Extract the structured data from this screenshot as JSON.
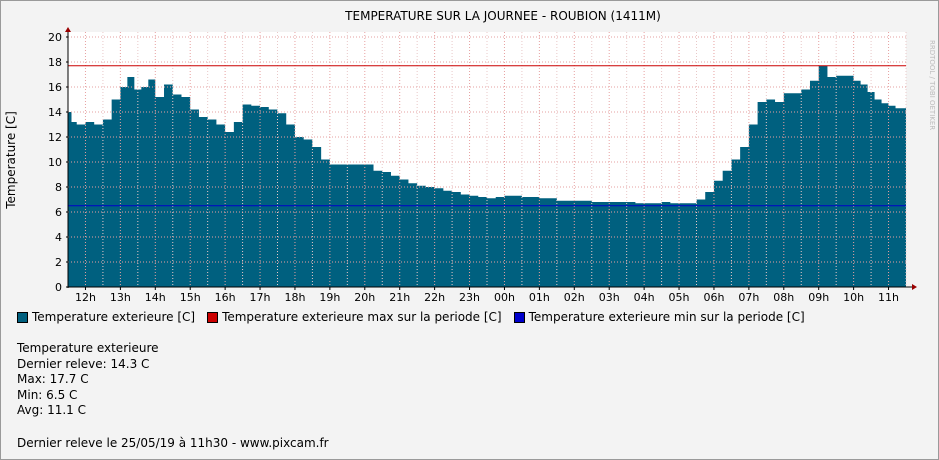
{
  "chart_data": {
    "type": "area",
    "title": "TEMPERATURE SUR LA JOURNEE - ROUBION (1411M)",
    "ylabel": "Temperature [C]",
    "xlabel": "",
    "ylim": [
      0,
      20
    ],
    "yticks": [
      0,
      2,
      4,
      6,
      8,
      10,
      12,
      14,
      16,
      18,
      20
    ],
    "x_tick_labels": [
      "12h",
      "13h",
      "14h",
      "15h",
      "16h",
      "17h",
      "18h",
      "19h",
      "20h",
      "21h",
      "22h",
      "23h",
      "00h",
      "01h",
      "02h",
      "03h",
      "04h",
      "05h",
      "06h",
      "07h",
      "08h",
      "09h",
      "10h",
      "11h"
    ],
    "x_start_hour": 11.5,
    "x_end_hour": 35.5,
    "grid": true,
    "series": [
      {
        "name": "Temperature exterieure [C]",
        "color": "#00607f",
        "x_hours": [
          11.5,
          11.6,
          11.75,
          12.0,
          12.25,
          12.5,
          12.75,
          13.0,
          13.2,
          13.4,
          13.6,
          13.8,
          14.0,
          14.25,
          14.5,
          14.75,
          15.0,
          15.25,
          15.5,
          15.75,
          16.0,
          16.25,
          16.5,
          16.75,
          17.0,
          17.25,
          17.5,
          17.75,
          18.0,
          18.25,
          18.5,
          18.75,
          19.0,
          19.25,
          19.5,
          19.75,
          20.0,
          20.25,
          20.5,
          20.75,
          21.0,
          21.25,
          21.5,
          21.75,
          22.0,
          22.25,
          22.5,
          22.75,
          23.0,
          23.25,
          23.5,
          23.75,
          24.0,
          24.25,
          24.5,
          24.75,
          25.0,
          25.25,
          25.5,
          25.75,
          26.0,
          26.25,
          26.5,
          26.75,
          27.0,
          27.25,
          27.5,
          27.75,
          28.0,
          28.25,
          28.5,
          28.75,
          29.0,
          29.25,
          29.5,
          29.75,
          30.0,
          30.25,
          30.5,
          30.75,
          31.0,
          31.25,
          31.5,
          31.75,
          32.0,
          32.25,
          32.5,
          32.75,
          33.0,
          33.25,
          33.5,
          33.75,
          34.0,
          34.2,
          34.4,
          34.6,
          34.8,
          35.0,
          35.2,
          35.4,
          35.5
        ],
        "values": [
          14.0,
          13.2,
          13.0,
          13.2,
          13.0,
          13.4,
          15.0,
          16.0,
          16.8,
          15.8,
          16.0,
          16.6,
          15.2,
          16.2,
          15.4,
          15.2,
          14.2,
          13.6,
          13.4,
          13.0,
          12.4,
          13.2,
          14.6,
          14.5,
          14.4,
          14.2,
          13.9,
          13.0,
          12.0,
          11.8,
          11.2,
          10.2,
          9.8,
          9.8,
          9.8,
          9.8,
          9.8,
          9.3,
          9.2,
          8.9,
          8.6,
          8.3,
          8.1,
          8.0,
          7.9,
          7.7,
          7.6,
          7.4,
          7.3,
          7.2,
          7.1,
          7.2,
          7.3,
          7.3,
          7.2,
          7.2,
          7.1,
          7.1,
          6.9,
          6.9,
          6.9,
          6.9,
          6.8,
          6.8,
          6.8,
          6.8,
          6.8,
          6.7,
          6.7,
          6.7,
          6.8,
          6.7,
          6.7,
          6.7,
          7.0,
          7.6,
          8.5,
          9.3,
          10.2,
          11.2,
          13.0,
          14.8,
          15.0,
          14.8,
          15.5,
          15.5,
          15.8,
          16.5,
          17.7,
          16.8,
          16.9,
          16.9,
          16.5,
          16.2,
          15.6,
          15.0,
          14.7,
          14.5,
          14.3,
          14.3,
          14.3
        ]
      },
      {
        "name": "Temperature exterieure max sur la periode [C]",
        "color": "#cc0000",
        "value": 17.7
      },
      {
        "name": "Temperature exterieure min sur la periode [C]",
        "color": "#0000cc",
        "value": 6.5
      }
    ]
  },
  "stats": {
    "heading": "Temperature exterieure",
    "last": "Dernier releve: 14.3 C",
    "max": "Max: 17.7 C",
    "min": "Min: 6.5 C",
    "avg": "Avg: 11.1 C"
  },
  "footer": "Dernier releve le 25/05/19 à 11h30 - www.pixcam.fr",
  "watermark": "RRDTOOL / TOBI OETIKER"
}
